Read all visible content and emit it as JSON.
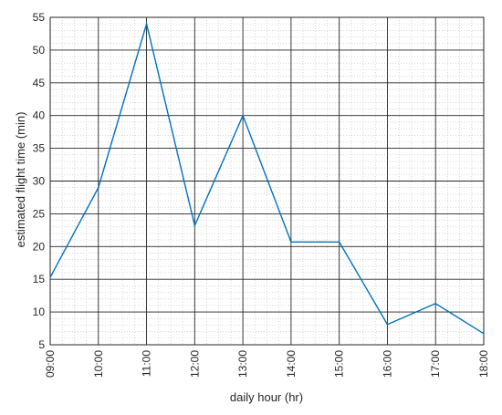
{
  "chart_data": {
    "type": "line",
    "title": "",
    "xlabel": "daily hour (hr)",
    "ylabel": "estimated flight time (min)",
    "x": [
      "09:00",
      "10:00",
      "11:00",
      "12:00",
      "13:00",
      "14:00",
      "15:00",
      "16:00",
      "17:00",
      "18:00"
    ],
    "series": [
      {
        "color": "#0072BD",
        "values": [
          15.3,
          29,
          54,
          23.2,
          40,
          20.7,
          20.7,
          8.1,
          11.3,
          6.7
        ]
      }
    ],
    "yticks": [
      5,
      10,
      15,
      20,
      25,
      30,
      35,
      40,
      45,
      50,
      55
    ],
    "ylim": [
      5,
      55
    ],
    "grid": "major and minor",
    "legend": "none"
  }
}
